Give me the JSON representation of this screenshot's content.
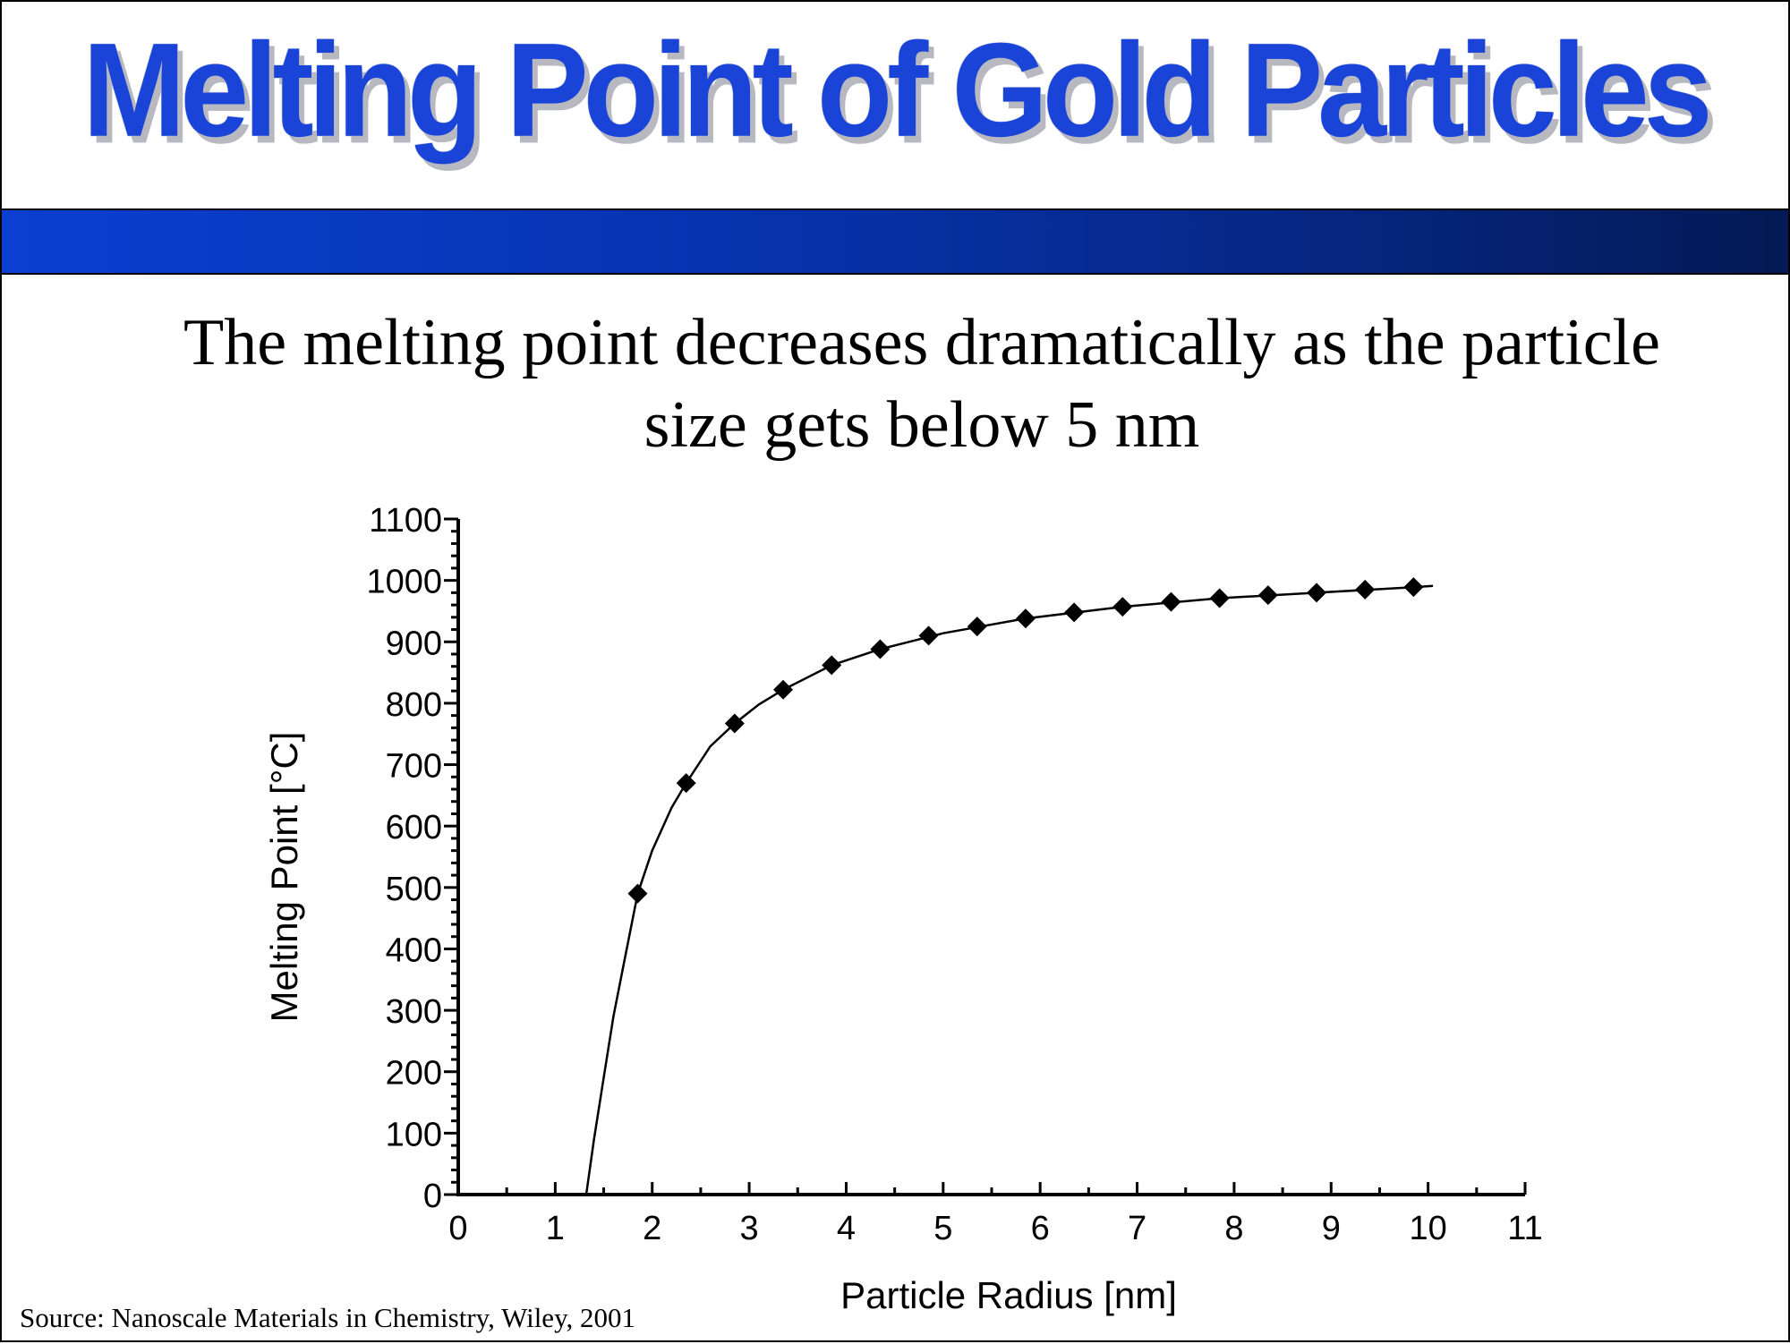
{
  "slide": {
    "title": "Melting Point of Gold Particles",
    "subtitle": "The melting point decreases dramatically as the particle size gets below 5 nm",
    "source": "Source: Nanoscale Materials in Chemistry, Wiley, 2001",
    "colors": {
      "title": "#1a44d8",
      "band_start": "#0a3fd0",
      "band_end": "#041a55"
    }
  },
  "chart_data": {
    "type": "scatter",
    "xlabel": "Particle Radius [nm]",
    "ylabel": "Melting Point [°C]",
    "xlim": [
      0,
      11
    ],
    "ylim": [
      0,
      1100
    ],
    "x_ticks": [
      0,
      1,
      2,
      3,
      4,
      5,
      6,
      7,
      8,
      9,
      10,
      11
    ],
    "y_ticks": [
      0,
      100,
      200,
      300,
      400,
      500,
      600,
      700,
      800,
      900,
      1000,
      1100
    ],
    "grid": false,
    "legend": "none",
    "series": [
      {
        "marker": "diamond",
        "x": [
          1.85,
          2.35,
          2.85,
          3.35,
          3.85,
          4.35,
          4.85,
          5.35,
          5.85,
          6.35,
          6.85,
          7.35,
          7.85,
          8.35,
          8.85,
          9.35,
          9.85
        ],
        "y": [
          490,
          670,
          767,
          822,
          862,
          888,
          910,
          925,
          938,
          948,
          957,
          965,
          971,
          976,
          980,
          985,
          989
        ]
      }
    ],
    "fit_curve": {
      "x": [
        1.32,
        1.4,
        1.5,
        1.6,
        1.7,
        1.85,
        2.0,
        2.2,
        2.35,
        2.6,
        2.85,
        3.1,
        3.35,
        3.85,
        4.35,
        5.0,
        5.85,
        6.85,
        7.85,
        8.85,
        9.85,
        10.05
      ],
      "y": [
        0,
        90,
        190,
        290,
        370,
        490,
        560,
        630,
        670,
        730,
        767,
        798,
        822,
        862,
        888,
        914,
        938,
        957,
        971,
        980,
        989,
        991
      ]
    }
  }
}
